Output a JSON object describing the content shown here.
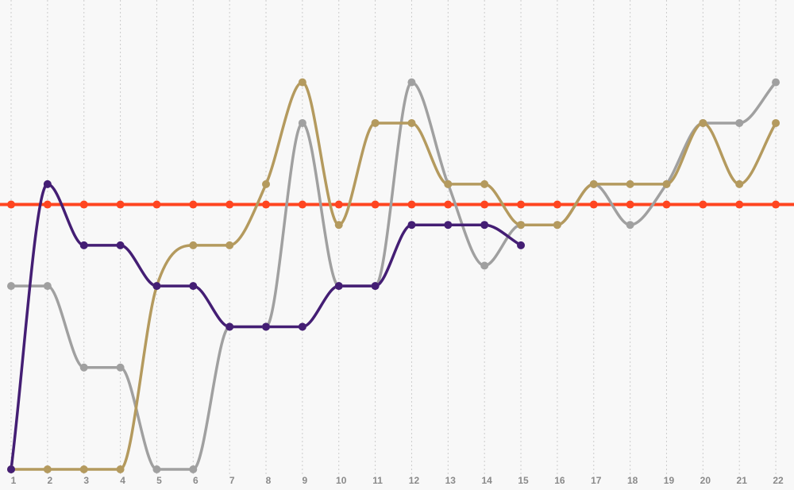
{
  "chart_data": {
    "type": "line",
    "x": [
      1,
      2,
      3,
      4,
      5,
      6,
      7,
      8,
      9,
      10,
      11,
      12,
      13,
      14,
      15,
      16,
      17,
      18,
      19,
      20,
      21,
      22
    ],
    "ylim": [
      0,
      10
    ],
    "grid": {
      "vertical": true,
      "horizontal": false
    },
    "legend": "none",
    "series": [
      {
        "color": "#a0a0a0",
        "values": [
          4.5,
          4.5,
          2.5,
          2.5,
          0,
          0,
          3.5,
          3.5,
          8.5,
          4.5,
          4.5,
          9.5,
          7,
          5,
          6,
          6,
          7,
          6,
          7,
          8.5,
          8.5,
          9.5
        ]
      },
      {
        "color": "#b49a5e",
        "values": [
          0,
          0,
          0,
          0,
          4.5,
          5.5,
          5.5,
          7,
          9.5,
          6,
          8.5,
          8.5,
          7,
          7,
          6,
          6,
          7,
          7,
          7,
          8.5,
          7,
          8.5
        ]
      },
      {
        "color": "#441e74",
        "values": [
          0,
          7,
          5.5,
          5.5,
          4.5,
          4.5,
          3.5,
          3.5,
          3.5,
          4.5,
          4.5,
          6,
          6,
          6,
          5.5,
          null,
          null,
          null,
          null,
          null,
          null,
          null
        ]
      },
      {
        "color": "#ff4520",
        "values": [
          6.5,
          6.5,
          6.5,
          6.5,
          6.5,
          6.5,
          6.5,
          6.5,
          6.5,
          6.5,
          6.5,
          6.5,
          6.5,
          6.5,
          6.5,
          6.5,
          6.5,
          6.5,
          6.5,
          6.5,
          6.5,
          6.5
        ]
      }
    ]
  },
  "colors": {
    "background": "#f8f8f8",
    "grid": "#cccccc",
    "tick_label": "#8a8a8a"
  }
}
